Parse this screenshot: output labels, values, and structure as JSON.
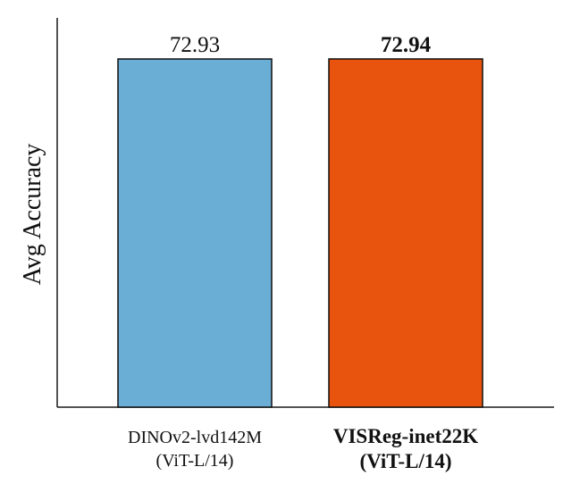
{
  "chart_data": {
    "type": "bar",
    "categories": [
      [
        "DINOv2-lvd142M",
        "(ViT-L/14)"
      ],
      [
        "VISReg-inet22K",
        "(ViT-L/14)"
      ]
    ],
    "values": [
      72.93,
      72.94
    ],
    "value_labels": [
      "72.93",
      "72.94"
    ],
    "ylabel": "Avg Accuracy",
    "colors": [
      "#6aaed6",
      "#e8540e"
    ],
    "highlight": [
      false,
      true
    ],
    "grid": false,
    "y_ticks_shown": false
  }
}
